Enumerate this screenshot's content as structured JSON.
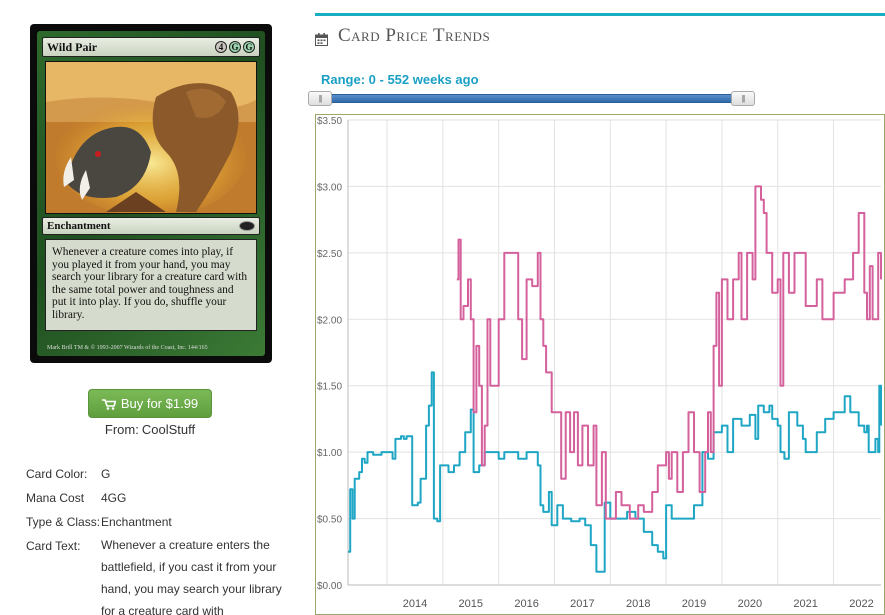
{
  "card": {
    "name": "Wild Pair",
    "mana_symbols": [
      "4",
      "G",
      "G"
    ],
    "type_line": "Enchantment",
    "rules_text": "Whenever a creature comes into play, if you played it from your hand, you may search your library for a creature card with the same total power and toughness and put it into play. If you do, shuffle your library.",
    "artist": "Mark Brill",
    "copyright": "TM & © 1993-2007 Wizards of the Coast, Inc. 144/165"
  },
  "buy": {
    "label": "Buy for $1.99",
    "icon": "shopping-cart-icon"
  },
  "from": {
    "label": "From:",
    "store": "CoolStuff"
  },
  "details": [
    {
      "key": "Card Color:",
      "value": "G"
    },
    {
      "key": "Mana Cost",
      "value": "4GG"
    },
    {
      "key": "Type & Class:",
      "value": "Enchantment"
    },
    {
      "key": "Card Text:",
      "value": "Whenever a creature enters the battlefield, if you cast it from your hand, you may search your library for a creature card with"
    }
  ],
  "section": {
    "title": "Card Price Trends",
    "icon": "calendar-icon"
  },
  "range": {
    "label": "Range: 0 - 552 weeks ago",
    "min": 0,
    "max": 552,
    "handle_glyph": "|||"
  },
  "colors": {
    "accent": "#1aaec2",
    "pink": "#d4609c",
    "blue": "#1fa6c4",
    "buy_green": "#6aab48"
  },
  "chart_data": {
    "type": "line",
    "y_ticks": [
      "$0.00",
      "$0.50",
      "$1.00",
      "$1.50",
      "$2.00",
      "$2.50",
      "$3.00",
      "$3.50"
    ],
    "ylim": [
      0,
      3.5
    ],
    "x_ticks": [
      "2014",
      "2015",
      "2016",
      "2017",
      "2018",
      "2019",
      "2020",
      "2021",
      "2022"
    ],
    "xlim": [
      2013.3,
      2022.85
    ],
    "grid": true,
    "series": [
      {
        "color": "#1fa6c4",
        "points": [
          [
            2013.3,
            0.25
          ],
          [
            2013.34,
            0.72
          ],
          [
            2013.38,
            0.5
          ],
          [
            2013.42,
            0.8
          ],
          [
            2013.5,
            0.85
          ],
          [
            2013.55,
            0.95
          ],
          [
            2013.6,
            0.92
          ],
          [
            2013.65,
            1.0
          ],
          [
            2013.7,
            1.0
          ],
          [
            2013.75,
            0.98
          ],
          [
            2013.9,
            1.0
          ],
          [
            2014.05,
            1.0
          ],
          [
            2014.1,
            0.95
          ],
          [
            2014.15,
            1.1
          ],
          [
            2014.2,
            1.1
          ],
          [
            2014.25,
            1.12
          ],
          [
            2014.3,
            1.1
          ],
          [
            2014.35,
            1.12
          ],
          [
            2014.42,
            1.12
          ],
          [
            2014.45,
            0.6
          ],
          [
            2014.55,
            0.62
          ],
          [
            2014.6,
            0.8
          ],
          [
            2014.7,
            1.2
          ],
          [
            2014.75,
            1.35
          ],
          [
            2014.8,
            1.6
          ],
          [
            2014.84,
            0.5
          ],
          [
            2014.9,
            0.48
          ],
          [
            2014.95,
            0.9
          ],
          [
            2015.1,
            0.85
          ],
          [
            2015.2,
            0.9
          ],
          [
            2015.3,
            1.0
          ],
          [
            2015.4,
            1.15
          ],
          [
            2015.5,
            1.32
          ],
          [
            2015.55,
            0.85
          ],
          [
            2015.65,
            0.9
          ],
          [
            2015.75,
            1.0
          ],
          [
            2015.9,
            1.0
          ],
          [
            2016.0,
            0.95
          ],
          [
            2016.1,
            1.0
          ],
          [
            2016.25,
            1.0
          ],
          [
            2016.35,
            0.95
          ],
          [
            2016.5,
            1.0
          ],
          [
            2016.65,
            1.0
          ],
          [
            2016.7,
            0.9
          ],
          [
            2016.75,
            0.6
          ],
          [
            2016.8,
            0.55
          ],
          [
            2016.9,
            0.7
          ],
          [
            2016.95,
            0.45
          ],
          [
            2017.05,
            0.6
          ],
          [
            2017.15,
            0.5
          ],
          [
            2017.3,
            0.48
          ],
          [
            2017.45,
            0.5
          ],
          [
            2017.55,
            0.45
          ],
          [
            2017.65,
            0.3
          ],
          [
            2017.75,
            0.1
          ],
          [
            2017.85,
            0.1
          ],
          [
            2017.9,
            0.62
          ],
          [
            2018.0,
            0.5
          ],
          [
            2018.15,
            0.5
          ],
          [
            2018.3,
            0.55
          ],
          [
            2018.45,
            0.5
          ],
          [
            2018.6,
            0.4
          ],
          [
            2018.75,
            0.3
          ],
          [
            2018.85,
            0.25
          ],
          [
            2018.95,
            0.2
          ],
          [
            2019.0,
            0.6
          ],
          [
            2019.1,
            0.5
          ],
          [
            2019.3,
            0.5
          ],
          [
            2019.5,
            0.6
          ],
          [
            2019.65,
            1.0
          ],
          [
            2019.75,
            0.95
          ],
          [
            2019.85,
            1.15
          ],
          [
            2020.0,
            1.2
          ],
          [
            2020.1,
            1.0
          ],
          [
            2020.2,
            1.25
          ],
          [
            2020.35,
            1.2
          ],
          [
            2020.5,
            1.28
          ],
          [
            2020.6,
            1.1
          ],
          [
            2020.65,
            1.35
          ],
          [
            2020.75,
            1.3
          ],
          [
            2020.85,
            1.35
          ],
          [
            2020.9,
            1.25
          ],
          [
            2021.0,
            1.2
          ],
          [
            2021.05,
            1.0
          ],
          [
            2021.12,
            0.95
          ],
          [
            2021.2,
            1.3
          ],
          [
            2021.35,
            1.2
          ],
          [
            2021.45,
            1.1
          ],
          [
            2021.5,
            1.0
          ],
          [
            2021.7,
            1.15
          ],
          [
            2021.85,
            1.25
          ],
          [
            2022.0,
            1.3
          ],
          [
            2022.2,
            1.42
          ],
          [
            2022.3,
            1.3
          ],
          [
            2022.45,
            1.2
          ],
          [
            2022.55,
            1.15
          ],
          [
            2022.6,
            1.2
          ],
          [
            2022.63,
            1.0
          ],
          [
            2022.7,
            1.0
          ],
          [
            2022.75,
            1.1
          ],
          [
            2022.8,
            1.0
          ],
          [
            2022.82,
            1.5
          ],
          [
            2022.85,
            1.2
          ]
        ]
      },
      {
        "color": "#d4609c",
        "points": [
          [
            2015.25,
            2.3
          ],
          [
            2015.28,
            2.6
          ],
          [
            2015.32,
            2.0
          ],
          [
            2015.37,
            2.1
          ],
          [
            2015.45,
            2.3
          ],
          [
            2015.5,
            2.0
          ],
          [
            2015.55,
            1.3
          ],
          [
            2015.6,
            1.8
          ],
          [
            2015.65,
            1.5
          ],
          [
            2015.7,
            0.9
          ],
          [
            2015.75,
            1.2
          ],
          [
            2015.8,
            2.0
          ],
          [
            2015.85,
            1.5
          ],
          [
            2016.0,
            2.0
          ],
          [
            2016.1,
            2.5
          ],
          [
            2016.25,
            2.5
          ],
          [
            2016.35,
            2.0
          ],
          [
            2016.42,
            1.7
          ],
          [
            2016.5,
            2.3
          ],
          [
            2016.6,
            2.25
          ],
          [
            2016.7,
            2.5
          ],
          [
            2016.75,
            2.0
          ],
          [
            2016.8,
            1.8
          ],
          [
            2016.85,
            1.6
          ],
          [
            2016.95,
            1.3
          ],
          [
            2017.05,
            1.3
          ],
          [
            2017.12,
            0.8
          ],
          [
            2017.2,
            1.3
          ],
          [
            2017.28,
            1.0
          ],
          [
            2017.35,
            1.3
          ],
          [
            2017.42,
            0.9
          ],
          [
            2017.5,
            1.2
          ],
          [
            2017.6,
            0.9
          ],
          [
            2017.7,
            1.2
          ],
          [
            2017.75,
            0.6
          ],
          [
            2017.85,
            1.0
          ],
          [
            2017.92,
            0.5
          ],
          [
            2018.0,
            0.5
          ],
          [
            2018.1,
            0.7
          ],
          [
            2018.2,
            0.6
          ],
          [
            2018.35,
            0.5
          ],
          [
            2018.5,
            0.6
          ],
          [
            2018.6,
            0.55
          ],
          [
            2018.75,
            0.7
          ],
          [
            2018.85,
            0.9
          ],
          [
            2019.0,
            1.0
          ],
          [
            2019.05,
            0.8
          ],
          [
            2019.1,
            1.0
          ],
          [
            2019.2,
            0.7
          ],
          [
            2019.3,
            1.0
          ],
          [
            2019.4,
            1.3
          ],
          [
            2019.5,
            1.0
          ],
          [
            2019.6,
            0.7
          ],
          [
            2019.7,
            1.0
          ],
          [
            2019.75,
            1.3
          ],
          [
            2019.8,
            1.0
          ],
          [
            2019.85,
            1.8
          ],
          [
            2019.9,
            2.2
          ],
          [
            2019.95,
            1.5
          ],
          [
            2020.0,
            2.3
          ],
          [
            2020.1,
            2.0
          ],
          [
            2020.2,
            2.3
          ],
          [
            2020.3,
            2.5
          ],
          [
            2020.35,
            2.0
          ],
          [
            2020.45,
            2.5
          ],
          [
            2020.55,
            2.3
          ],
          [
            2020.6,
            3.0
          ],
          [
            2020.7,
            2.9
          ],
          [
            2020.75,
            2.8
          ],
          [
            2020.8,
            2.5
          ],
          [
            2020.9,
            2.2
          ],
          [
            2021.0,
            2.3
          ],
          [
            2021.05,
            1.5
          ],
          [
            2021.1,
            2.5
          ],
          [
            2021.2,
            2.2
          ],
          [
            2021.3,
            2.5
          ],
          [
            2021.4,
            2.5
          ],
          [
            2021.5,
            2.1
          ],
          [
            2021.7,
            2.3
          ],
          [
            2021.8,
            2.0
          ],
          [
            2022.0,
            2.2
          ],
          [
            2022.2,
            2.3
          ],
          [
            2022.35,
            2.5
          ],
          [
            2022.45,
            2.8
          ],
          [
            2022.55,
            2.2
          ],
          [
            2022.6,
            2.0
          ],
          [
            2022.65,
            2.4
          ],
          [
            2022.7,
            2.0
          ],
          [
            2022.8,
            2.5
          ],
          [
            2022.85,
            2.3
          ]
        ]
      }
    ]
  }
}
